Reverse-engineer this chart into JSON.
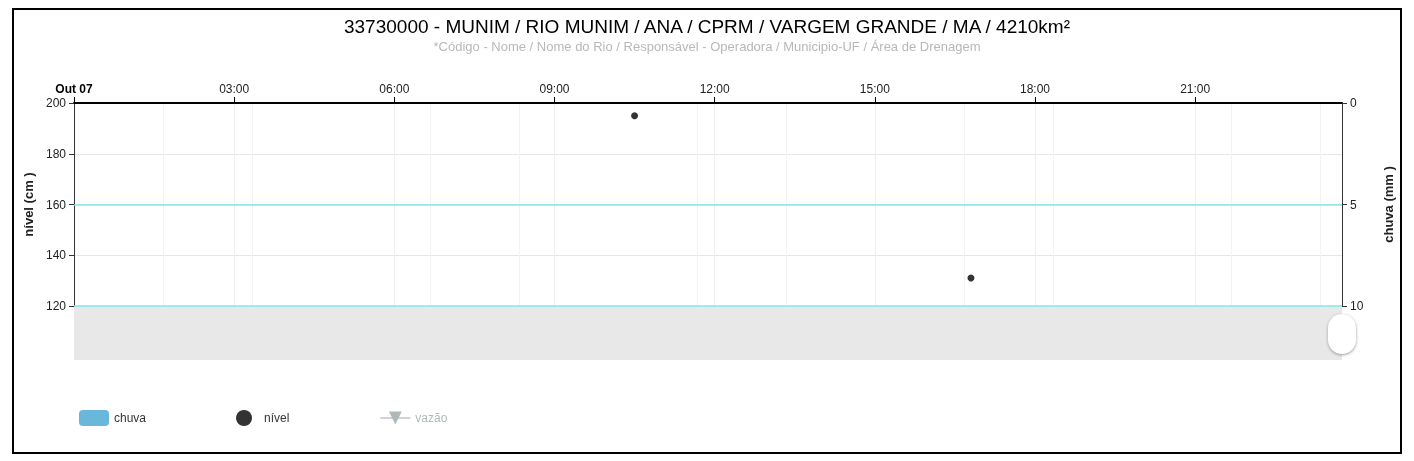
{
  "chart_data": {
    "type": "scatter",
    "title": "33730000 - MUNIM / RIO MUNIM / ANA / CPRM / VARGEM GRANDE / MA / 4210km²",
    "subtitle": "*Código - Nome / Nome do Rio / Responsável - Operadora / Municipio-UF / Área de Drenagem",
    "ylabel": "nível (cm )",
    "y2label": "chuva (mm )",
    "xlim": [
      0,
      23.75
    ],
    "xticks": [
      {
        "value": 0,
        "label": "Out 07"
      },
      {
        "value": 3,
        "label": "03:00"
      },
      {
        "value": 6,
        "label": "06:00"
      },
      {
        "value": 9,
        "label": "09:00"
      },
      {
        "value": 12,
        "label": "12:00"
      },
      {
        "value": 15,
        "label": "15:00"
      },
      {
        "value": 18,
        "label": "18:00"
      },
      {
        "value": 21,
        "label": "21:00"
      }
    ],
    "ylim": [
      120,
      200
    ],
    "yticks": [
      120,
      140,
      160,
      180,
      200
    ],
    "y2lim": [
      10,
      0
    ],
    "y2ticks": [
      0,
      5,
      10
    ],
    "series": [
      {
        "name": "chuva",
        "type": "bar",
        "color": "#6ab7dc"
      },
      {
        "name": "nível",
        "color": "#000000",
        "marker": "circle",
        "x": [
          10.5,
          16.8
        ],
        "values": [
          195,
          131
        ]
      },
      {
        "name": "vazão",
        "type": "line",
        "color": "#aab4b4",
        "marker": "triangle"
      }
    ],
    "ref_lines": [
      {
        "axis": "y2",
        "value": 5,
        "color": "#7fe8ec"
      },
      {
        "axis": "y2",
        "value": 10,
        "color": "#7fe8ec"
      }
    ],
    "grid": true,
    "legend": "bottom left"
  }
}
